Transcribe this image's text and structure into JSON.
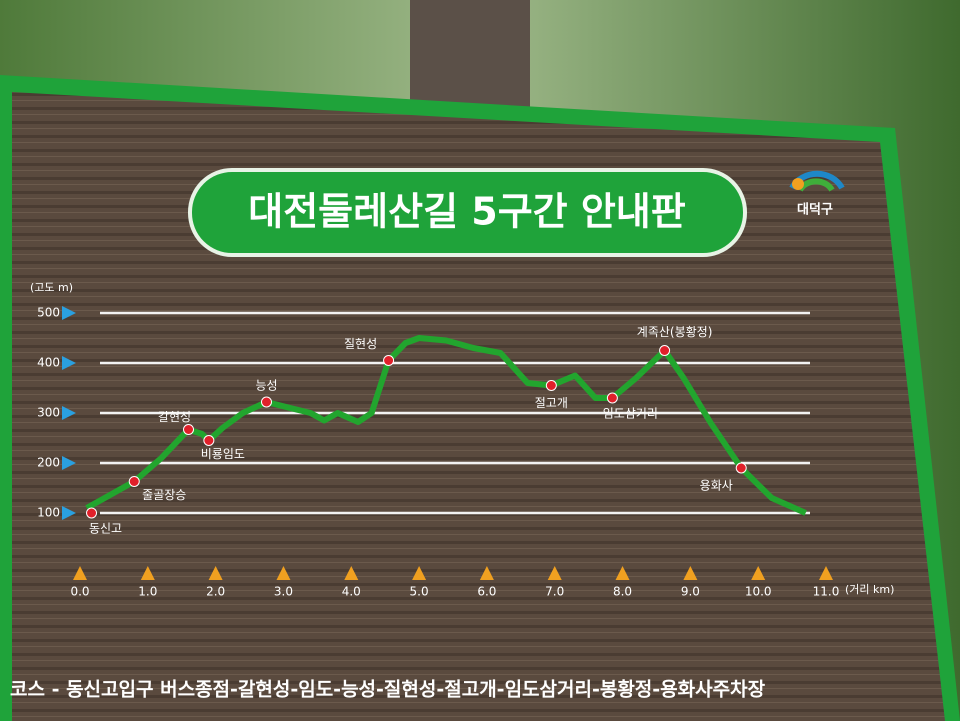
{
  "sign": {
    "title": "대전둘레산길 5구간 안내판",
    "logo": "대덕구",
    "course": "코스 - 동신고입구 버스종점-갈현성-임도-능성-질현성-절고개-임도삼거리-봉황정-용화사주차장"
  },
  "chart_data": {
    "type": "line",
    "y_label": "(고도 m)",
    "x_label": "(거리 km)",
    "xlim": [
      0,
      11
    ],
    "ylim": [
      100,
      500
    ],
    "yticks": [
      100,
      200,
      300,
      400,
      500
    ],
    "xticks": [
      {
        "value": 0,
        "label": "0.0"
      },
      {
        "value": 1,
        "label": "1.0"
      },
      {
        "value": 2,
        "label": "2.0"
      },
      {
        "value": 3,
        "label": "3.0"
      },
      {
        "value": 4,
        "label": "4.0"
      },
      {
        "value": 5,
        "label": "5.0"
      },
      {
        "value": 6,
        "label": "6.0"
      },
      {
        "value": 7,
        "label": "7.0"
      },
      {
        "value": 8,
        "label": "8.0"
      },
      {
        "value": 9,
        "label": "9.0"
      },
      {
        "value": 10,
        "label": "10.0"
      },
      {
        "value": 11,
        "label": "11.0"
      }
    ],
    "grid": true,
    "profile": {
      "color": "#22a52e",
      "x": [
        0.1,
        0.8,
        1.2,
        1.6,
        1.8,
        1.9,
        2.1,
        2.4,
        2.75,
        3.1,
        3.4,
        3.6,
        3.8,
        4.1,
        4.3,
        4.55,
        4.8,
        5.0,
        5.4,
        5.8,
        6.2,
        6.6,
        6.95,
        7.3,
        7.6,
        7.85,
        8.2,
        8.62,
        8.9,
        9.3,
        9.75,
        10.2,
        10.7
      ],
      "y": [
        110,
        163,
        210,
        267,
        258,
        245,
        270,
        300,
        322,
        310,
        300,
        285,
        300,
        282,
        300,
        405,
        440,
        450,
        445,
        430,
        420,
        360,
        355,
        375,
        330,
        330,
        370,
        425,
        370,
        280,
        190,
        130,
        100
      ]
    },
    "landmarks": {
      "color": "#e0202a",
      "labels": [
        "동신고",
        "줄골장승",
        "갈현성",
        "비룡임도",
        "능성",
        "질현성",
        "절고개",
        "임도삼거리",
        "계족산(봉황정)",
        "용화사"
      ],
      "x": [
        0.17,
        0.8,
        1.6,
        1.9,
        2.75,
        4.55,
        6.95,
        7.85,
        8.62,
        9.75
      ],
      "y": [
        100,
        163,
        267,
        245,
        322,
        405,
        355,
        330,
        425,
        190
      ]
    }
  }
}
